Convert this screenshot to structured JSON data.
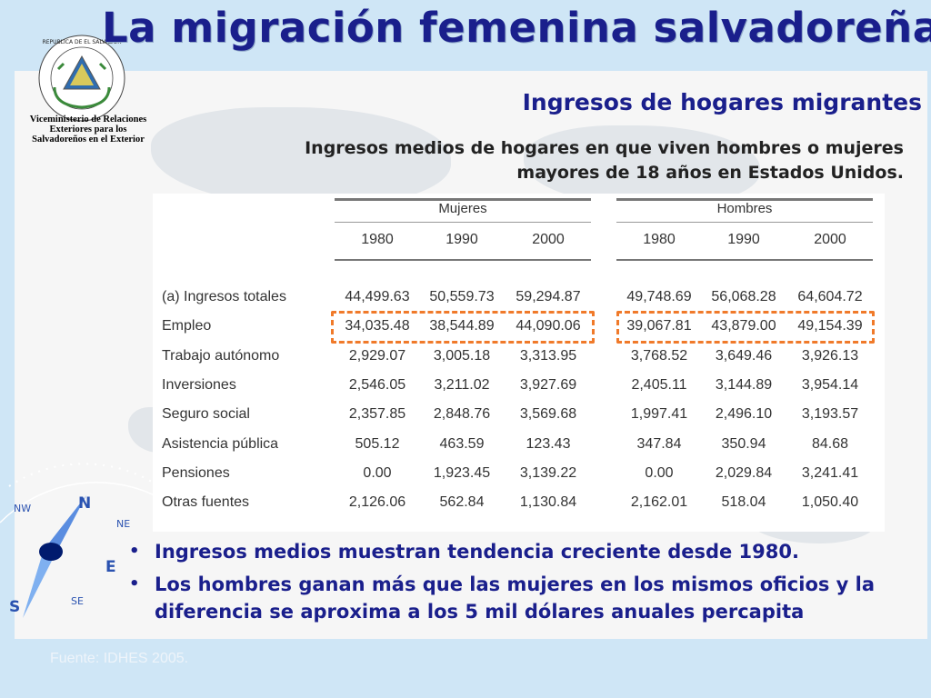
{
  "title": "La migración femenina salvadoreña",
  "logo": {
    "seal_text": "REPUBLICA DE EL SALVADOR EN LA AMERICA CENTRAL",
    "ministry_line1": "Viceministerio de Relaciones",
    "ministry_line2": "Exteriores para los",
    "ministry_line3": "Salvadoreños en el Exterior"
  },
  "subtitle": "Ingresos de hogares migrantes",
  "description": "Ingresos medios de hogares en que viven hombres o mujeres mayores de 18 años en Estados Unidos.",
  "table": {
    "groups": [
      "Mujeres",
      "Hombres"
    ],
    "years": [
      "1980",
      "1990",
      "2000",
      "1980",
      "1990",
      "2000"
    ],
    "rows": [
      {
        "label": "(a) Ingresos totales",
        "values": [
          "44,499.63",
          "50,559.73",
          "59,294.87",
          "49,748.69",
          "56,068.28",
          "64,604.72"
        ]
      },
      {
        "label": "Empleo",
        "values": [
          "34,035.48",
          "38,544.89",
          "44,090.06",
          "39,067.81",
          "43,879.00",
          "49,154.39"
        ]
      },
      {
        "label": "Trabajo autónomo",
        "values": [
          "2,929.07",
          "3,005.18",
          "3,313.95",
          "3,768.52",
          "3,649.46",
          "3,926.13"
        ]
      },
      {
        "label": "Inversiones",
        "values": [
          "2,546.05",
          "3,211.02",
          "3,927.69",
          "2,405.11",
          "3,144.89",
          "3,954.14"
        ]
      },
      {
        "label": "Seguro social",
        "values": [
          "2,357.85",
          "2,848.76",
          "3,569.68",
          "1,997.41",
          "2,496.10",
          "3,193.57"
        ]
      },
      {
        "label": "Asistencia pública",
        "values": [
          "505.12",
          "463.59",
          "123.43",
          "347.84",
          "350.94",
          "84.68"
        ]
      },
      {
        "label": "Pensiones",
        "values": [
          "0.00",
          "1,923.45",
          "3,139.22",
          "0.00",
          "2,029.84",
          "3,241.41"
        ]
      },
      {
        "label": "Otras fuentes",
        "values": [
          "2,126.06",
          "562.84",
          "1,130.84",
          "2,162.01",
          "518.04",
          "1,050.40"
        ]
      }
    ]
  },
  "bullets": [
    "Ingresos medios muestran tendencia creciente desde 1980.",
    "Los hombres ganan más que las mujeres en los mismos oficios  y la diferencia se aproxima a los 5 mil dólares anuales percapita"
  ],
  "source": "Fuente: IDHES 2005.",
  "compass": {
    "labels": [
      "NW",
      "N",
      "NE",
      "E",
      "SE",
      "S"
    ]
  },
  "colors": {
    "title": "#1a1f8c",
    "highlight": "#f07a2a",
    "background": "#cfe6f6"
  }
}
